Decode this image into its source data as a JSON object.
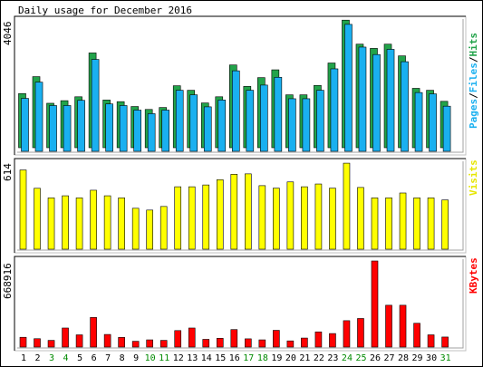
{
  "chart_data": {
    "type": "bar",
    "title": "Daily usage for December 2016",
    "days": [
      "1",
      "2",
      "3",
      "4",
      "5",
      "6",
      "7",
      "8",
      "9",
      "10",
      "11",
      "12",
      "13",
      "14",
      "15",
      "16",
      "17",
      "18",
      "19",
      "20",
      "21",
      "22",
      "23",
      "24",
      "25",
      "26",
      "27",
      "28",
      "29",
      "30",
      "31"
    ],
    "weekend_days": [
      "3",
      "4",
      "10",
      "11",
      "17",
      "18",
      "24",
      "25",
      "31"
    ],
    "colors": {
      "hits": "#22a34a",
      "files": "#1ab0f0",
      "pages": "#1ab0f0",
      "visits": "#ffff00",
      "kbytes": "#ff0000",
      "weekday_label": "#000000",
      "weekend_label": "#008a00",
      "frame_dark": "#000000",
      "frame_light": "#c0c0c0"
    },
    "panels": {
      "hits_files": {
        "scale_label": "4046",
        "ylim": [
          0,
          4046
        ],
        "legend": {
          "pages": "Pages",
          "sep1": "/",
          "files": "Files",
          "sep2": "/",
          "hits": "Hits"
        },
        "hits": [
          1780,
          2300,
          1480,
          1560,
          1680,
          3030,
          1580,
          1530,
          1380,
          1290,
          1350,
          2020,
          1880,
          1490,
          1680,
          2660,
          2000,
          2270,
          2510,
          1740,
          1740,
          2030,
          2720,
          4040,
          3300,
          3170,
          3300,
          2940,
          1940,
          1880,
          1540
        ],
        "files": [
          1630,
          2130,
          1410,
          1410,
          1570,
          2830,
          1460,
          1410,
          1270,
          1160,
          1270,
          1880,
          1740,
          1370,
          1580,
          2480,
          1880,
          2040,
          2280,
          1620,
          1620,
          1880,
          2540,
          3910,
          3210,
          2980,
          3140,
          2760,
          1810,
          1770,
          1390
        ]
      },
      "visits": {
        "scale_label": "614",
        "ylim": [
          0,
          614
        ],
        "legend": "Visits",
        "values": [
          571,
          439,
          370,
          385,
          370,
          425,
          385,
          370,
          295,
          282,
          308,
          450,
          450,
          463,
          501,
          540,
          543,
          458,
          440,
          485,
          450,
          470,
          440,
          620,
          445,
          370,
          370,
          405,
          370,
          370,
          355
        ]
      },
      "kbytes": {
        "scale_label": "668916",
        "ylim": [
          0,
          668916
        ],
        "legend": "KBytes",
        "values": [
          76000,
          65000,
          52000,
          148000,
          95000,
          230000,
          98000,
          75000,
          45000,
          56000,
          52000,
          128000,
          148000,
          60000,
          68000,
          136000,
          64000,
          56000,
          130000,
          48000,
          70000,
          118000,
          105000,
          205000,
          222000,
          668916,
          325000,
          325000,
          185000,
          95000,
          78000
        ]
      }
    }
  }
}
